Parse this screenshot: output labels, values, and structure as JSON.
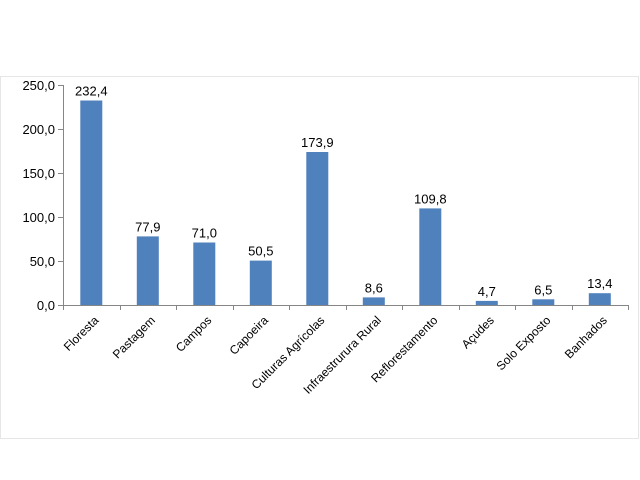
{
  "chart_data": {
    "type": "bar",
    "categories": [
      "Floresta",
      "Pastagem",
      "Campos",
      "Capoeira",
      "Culturas Agrícolas",
      "Infraestrurura Rural",
      "Reflorestamento",
      "Açudes",
      "Solo Exposto",
      "Banhados"
    ],
    "values": [
      232.4,
      77.9,
      71.0,
      50.5,
      173.9,
      8.6,
      109.8,
      4.7,
      6.5,
      13.4
    ],
    "value_labels": [
      "232,4",
      "77,9",
      "71,0",
      "50,5",
      "173,9",
      "8,6",
      "109,8",
      "4,7",
      "6,5",
      "13,4"
    ],
    "yticks": [
      0,
      50,
      100,
      150,
      200,
      250
    ],
    "ytick_labels": [
      "0,0",
      "50,0",
      "100,0",
      "150,0",
      "200,0",
      "250,0"
    ],
    "ylim": [
      0,
      250
    ],
    "title": "",
    "xlabel": "",
    "ylabel": "",
    "grid": false,
    "legend": false,
    "bar_color": "#4F81BD",
    "axis_color": "#868686"
  }
}
